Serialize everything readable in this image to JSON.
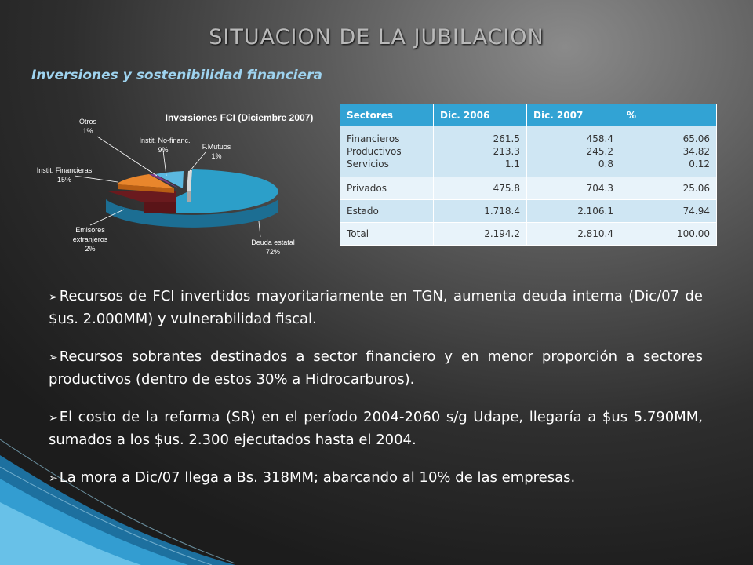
{
  "title": "SITUACION DE LA JUBILACION",
  "subtitle": "Inversiones y sostenibilidad financiera",
  "chart_data": {
    "type": "pie",
    "title": "Inversiones FCI (Diciembre 2007)",
    "slices": [
      {
        "name": "Deuda estatal",
        "value": 72,
        "label": "72%",
        "color": "#2c9fc9"
      },
      {
        "name": "Emisores extranjeros",
        "value": 2,
        "label": "2%",
        "color": "#5a1418"
      },
      {
        "name": "Instit. Financieras",
        "value": 15,
        "label": "15%",
        "color": "#e9862c"
      },
      {
        "name": "Otros",
        "value": 1,
        "label": "1%",
        "color": "#7a3a8a"
      },
      {
        "name": "Instit. No-financ.",
        "value": 9,
        "label": "9%",
        "color": "#2c9fc9"
      },
      {
        "name": "F.Mutuos",
        "value": 1,
        "label": "1%",
        "color": "#d8d8d8"
      }
    ],
    "labels": {
      "otros": [
        "Otros",
        "1%"
      ],
      "no_financ": [
        "Instit. No-financ.",
        "9%"
      ],
      "fmutuos": [
        "F.Mutuos",
        "1%"
      ],
      "financieras": [
        "Instit. Financieras",
        "15%"
      ],
      "emisores": [
        "Emisores",
        "extranjeros",
        "2%"
      ],
      "deuda": [
        "Deuda estatal",
        "72%"
      ]
    }
  },
  "table": {
    "headers": [
      "Sectores",
      "Dic. 2006",
      "Dic. 2007",
      "%"
    ],
    "rows": [
      {
        "sector": [
          "Financieros",
          "Productivos",
          "Servicios"
        ],
        "d2006": [
          "261.5",
          "213.3",
          "1.1"
        ],
        "d2007": [
          "458.4",
          "245.2",
          "0.8"
        ],
        "pct": [
          "65.06",
          "34.82",
          "0.12"
        ]
      },
      {
        "sector": [
          "Privados"
        ],
        "d2006": [
          "475.8"
        ],
        "d2007": [
          "704.3"
        ],
        "pct": [
          "25.06"
        ]
      },
      {
        "sector": [
          "Estado"
        ],
        "d2006": [
          "1.718.4"
        ],
        "d2007": [
          "2.106.1"
        ],
        "pct": [
          "74.94"
        ]
      },
      {
        "sector": [
          "Total"
        ],
        "d2006": [
          "2.194.2"
        ],
        "d2007": [
          "2.810.4"
        ],
        "pct": [
          "100.00"
        ]
      }
    ]
  },
  "bullets": [
    "Recursos de FCI invertidos mayoritariamente en TGN, aumenta deuda interna (Dic/07 de $us. 2.000MM) y vulnerabilidad fiscal.",
    "Recursos sobrantes destinados a sector financiero y en menor proporción a sectores productivos (dentro de estos 30% a Hidrocarburos).",
    "El costo de la reforma (SR) en el período 2004-2060 s/g Udape, llegaría a $us 5.790MM, sumados a los $us. 2.300 ejecutados hasta el 2004.",
    "La mora a Dic/07 llega a Bs. 318MM; abarcando al 10% de las empresas."
  ],
  "bullet_symbol": "➢"
}
